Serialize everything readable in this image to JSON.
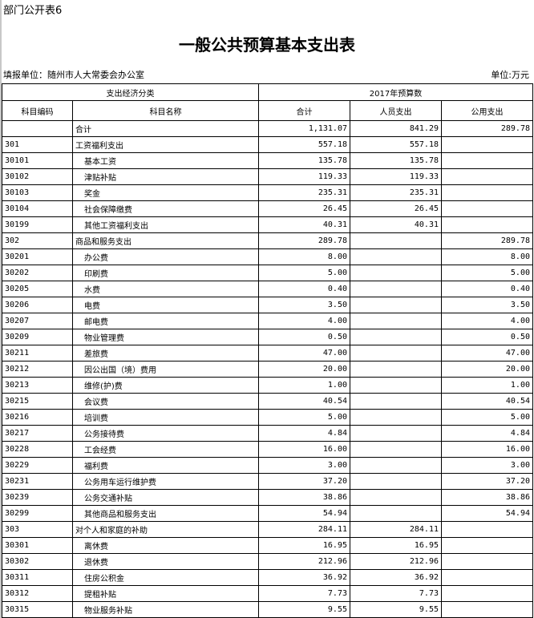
{
  "page_tag": "部门公开表6",
  "title": "一般公共预算基本支出表",
  "unit_left": "填报单位：随州市人大常委会办公室",
  "unit_right": "单位:万元",
  "header": {
    "group1": "支出经济分类",
    "group2": "2017年预算数",
    "code": "科目编码",
    "name": "科目名称",
    "total": "合计",
    "personnel": "人员支出",
    "public": "公用支出"
  },
  "rows": [
    {
      "code": "",
      "name": "合计",
      "total": "1,131.07",
      "personnel": "841.29",
      "public": "289.78",
      "level": 0
    },
    {
      "code": "301",
      "name": "工资福利支出",
      "total": "557.18",
      "personnel": "557.18",
      "public": "",
      "level": 0
    },
    {
      "code": "30101",
      "name": "基本工资",
      "total": "135.78",
      "personnel": "135.78",
      "public": "",
      "level": 1
    },
    {
      "code": "30102",
      "name": "津贴补贴",
      "total": "119.33",
      "personnel": "119.33",
      "public": "",
      "level": 1
    },
    {
      "code": "30103",
      "name": "奖金",
      "total": "235.31",
      "personnel": "235.31",
      "public": "",
      "level": 1
    },
    {
      "code": "30104",
      "name": "社会保障缴费",
      "total": "26.45",
      "personnel": "26.45",
      "public": "",
      "level": 1
    },
    {
      "code": "30199",
      "name": "其他工资福利支出",
      "total": "40.31",
      "personnel": "40.31",
      "public": "",
      "level": 1
    },
    {
      "code": "302",
      "name": "商品和服务支出",
      "total": "289.78",
      "personnel": "",
      "public": "289.78",
      "level": 0
    },
    {
      "code": "30201",
      "name": "办公费",
      "total": "8.00",
      "personnel": "",
      "public": "8.00",
      "level": 1
    },
    {
      "code": "30202",
      "name": "印刷费",
      "total": "5.00",
      "personnel": "",
      "public": "5.00",
      "level": 1
    },
    {
      "code": "30205",
      "name": "水费",
      "total": "0.40",
      "personnel": "",
      "public": "0.40",
      "level": 1
    },
    {
      "code": "30206",
      "name": "电费",
      "total": "3.50",
      "personnel": "",
      "public": "3.50",
      "level": 1
    },
    {
      "code": "30207",
      "name": "邮电费",
      "total": "4.00",
      "personnel": "",
      "public": "4.00",
      "level": 1
    },
    {
      "code": "30209",
      "name": "物业管理费",
      "total": "0.50",
      "personnel": "",
      "public": "0.50",
      "level": 1
    },
    {
      "code": "30211",
      "name": "差旅费",
      "total": "47.00",
      "personnel": "",
      "public": "47.00",
      "level": 1
    },
    {
      "code": "30212",
      "name": "因公出国（境）费用",
      "total": "20.00",
      "personnel": "",
      "public": "20.00",
      "level": 1
    },
    {
      "code": "30213",
      "name": "维修(护)费",
      "total": "1.00",
      "personnel": "",
      "public": "1.00",
      "level": 1
    },
    {
      "code": "30215",
      "name": "会议费",
      "total": "40.54",
      "personnel": "",
      "public": "40.54",
      "level": 1
    },
    {
      "code": "30216",
      "name": "培训费",
      "total": "5.00",
      "personnel": "",
      "public": "5.00",
      "level": 1
    },
    {
      "code": "30217",
      "name": "公务接待费",
      "total": "4.84",
      "personnel": "",
      "public": "4.84",
      "level": 1
    },
    {
      "code": "30228",
      "name": "工会经费",
      "total": "16.00",
      "personnel": "",
      "public": "16.00",
      "level": 1
    },
    {
      "code": "30229",
      "name": "福利费",
      "total": "3.00",
      "personnel": "",
      "public": "3.00",
      "level": 1
    },
    {
      "code": "30231",
      "name": "公务用车运行维护费",
      "total": "37.20",
      "personnel": "",
      "public": "37.20",
      "level": 1
    },
    {
      "code": "30239",
      "name": "公务交通补贴",
      "total": "38.86",
      "personnel": "",
      "public": "38.86",
      "level": 1
    },
    {
      "code": "30299",
      "name": "其他商品和服务支出",
      "total": "54.94",
      "personnel": "",
      "public": "54.94",
      "level": 1
    },
    {
      "code": "303",
      "name": "对个人和家庭的补助",
      "total": "284.11",
      "personnel": "284.11",
      "public": "",
      "level": 0
    },
    {
      "code": "30301",
      "name": "离休费",
      "total": "16.95",
      "personnel": "16.95",
      "public": "",
      "level": 1
    },
    {
      "code": "30302",
      "name": "退休费",
      "total": "212.96",
      "personnel": "212.96",
      "public": "",
      "level": 1
    },
    {
      "code": "30311",
      "name": "住房公积金",
      "total": "36.92",
      "personnel": "36.92",
      "public": "",
      "level": 1
    },
    {
      "code": "30312",
      "name": "提租补贴",
      "total": "7.73",
      "personnel": "7.73",
      "public": "",
      "level": 1
    },
    {
      "code": "30315",
      "name": "物业服务补贴",
      "total": "9.55",
      "personnel": "9.55",
      "public": "",
      "level": 1
    }
  ]
}
